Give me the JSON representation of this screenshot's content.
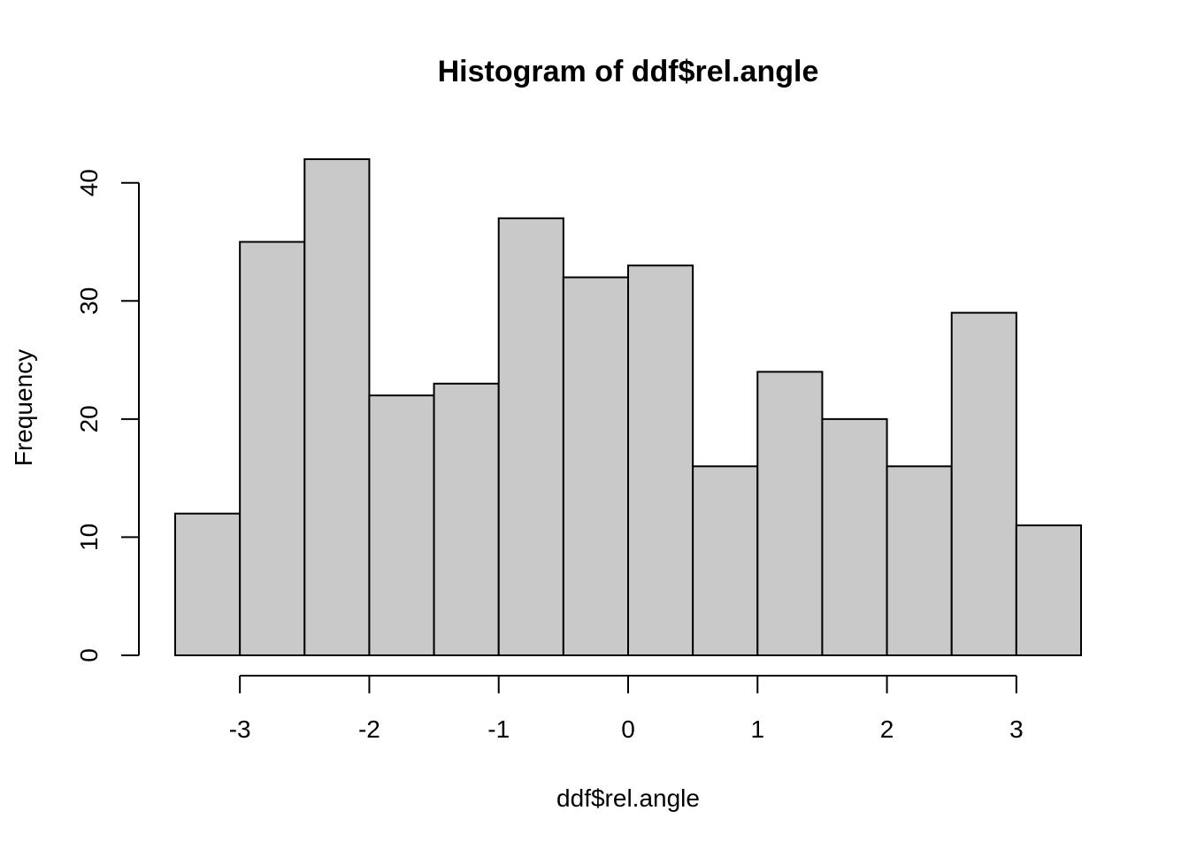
{
  "chart_data": {
    "type": "bar",
    "title": "Histogram of ddf$rel.angle",
    "xlabel": "ddf$rel.angle",
    "ylabel": "Frequency",
    "bin_edges": [
      -3.5,
      -3.0,
      -2.5,
      -2.0,
      -1.5,
      -1.0,
      -0.5,
      0.0,
      0.5,
      1.0,
      1.5,
      2.0,
      2.5,
      3.0,
      3.5
    ],
    "values": [
      12,
      35,
      42,
      22,
      23,
      37,
      32,
      33,
      16,
      24,
      20,
      16,
      29,
      11
    ],
    "x_ticks": [
      -3,
      -2,
      -1,
      0,
      1,
      2,
      3
    ],
    "y_ticks": [
      0,
      10,
      20,
      30,
      40
    ],
    "xlim": [
      -3.5,
      3.5
    ],
    "ylim": [
      0,
      42
    ],
    "grid": false,
    "bar_fill": "#c9c9c9",
    "bar_stroke": "#000000"
  }
}
